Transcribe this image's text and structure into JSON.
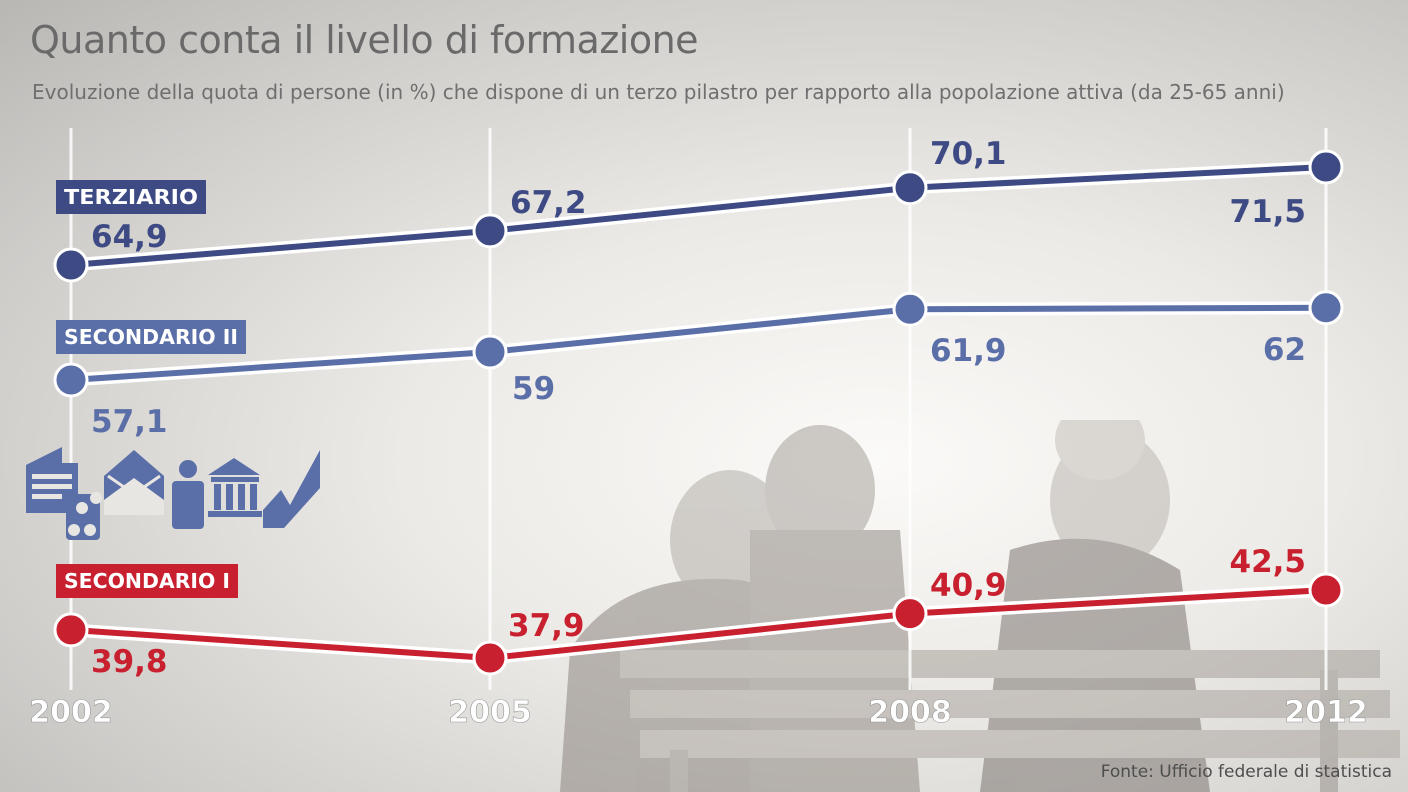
{
  "title": "Quanto conta il livello di formazione",
  "subtitle": "Evoluzione della quota di persone (in %) che dispone di un terzo pilastro per rapporto alla popolazione attiva (da 25-65 anni)",
  "source": "Fonte: Ufficio federale di statistica",
  "icons": [
    "document-icon",
    "money-icon",
    "envelope-icon",
    "person-icon",
    "bank-icon",
    "checkmark-icon"
  ],
  "colors": {
    "blue_dark": "#3d4a84",
    "blue_light": "#5a6ea8",
    "red": "#c8202f"
  },
  "chart_data": {
    "type": "line",
    "x": [
      "2002",
      "2005",
      "2008",
      "2012"
    ],
    "grid": true,
    "series": [
      {
        "name": "TERZIARIO",
        "labels": [
          "64,9",
          "67,2",
          "70,1",
          "71,5"
        ],
        "values": [
          64.9,
          67.2,
          70.1,
          71.5
        ]
      },
      {
        "name": "SECONDARIO II",
        "labels": [
          "57,1",
          "59",
          "61,9",
          "62"
        ],
        "values": [
          57.1,
          59,
          61.9,
          62
        ]
      },
      {
        "name": "SECONDARIO I",
        "labels": [
          "39,8",
          "37,9",
          "40,9",
          "42,5"
        ],
        "values": [
          39.8,
          37.9,
          40.9,
          42.5
        ]
      }
    ]
  }
}
